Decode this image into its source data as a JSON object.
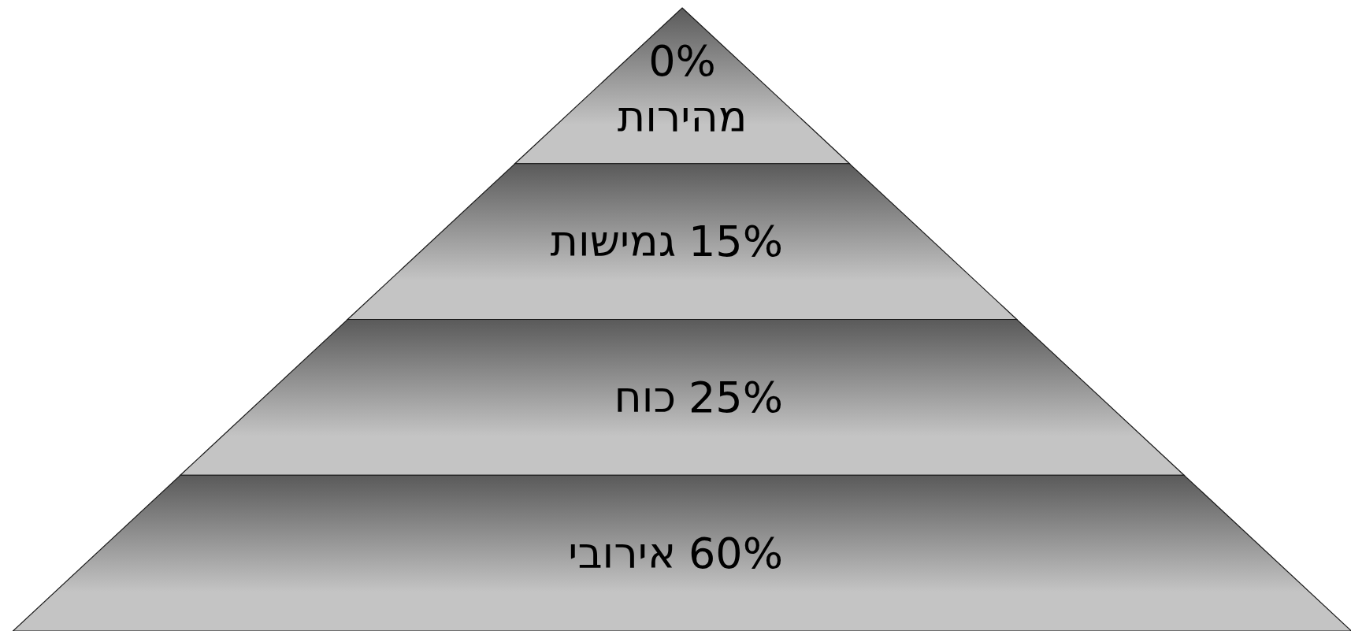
{
  "chart_data": {
    "type": "other",
    "categories": [
      "מהירות",
      "גמישות",
      "כוח",
      "אירובי"
    ],
    "values": [
      0,
      15,
      25,
      60
    ],
    "value_labels": [
      "0%",
      "15%",
      "25%",
      "60%"
    ]
  }
}
